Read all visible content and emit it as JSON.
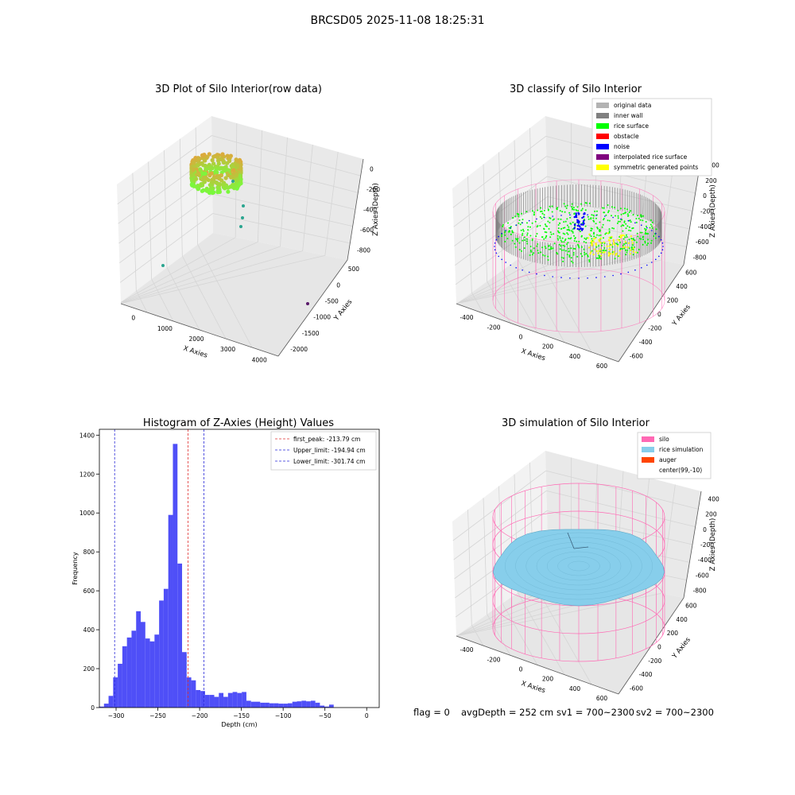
{
  "figure_title": "BRCSD05 2025-11-08 18:25:31",
  "footer": {
    "flag": "flag = 0",
    "avg": "avgDepth = 252 cm",
    "sv1": "sv1 = 700~2300",
    "sv2": "sv2 = 700~2300"
  },
  "colors": {
    "hist_bar": "#4f4ff7",
    "first_peak": "#e03030",
    "limit": "#2a2ad8",
    "silo": "#ff69b4",
    "rice_sim": "#87ceeb",
    "auger": "#ff4500",
    "rice_surface": "#00ff00",
    "inner_wall": "#808080",
    "original_data": "#b3b3b3",
    "noise": "#0000ff",
    "obstacle": "#ff0000",
    "interpolated": "#800080",
    "symmetric": "#ffff00"
  },
  "panels": {
    "raw": {
      "title": "3D Plot of Silo Interior(row data)",
      "xlabel": "X Axies",
      "ylabel": "Y Axies",
      "zlabel": "Z Axies (Depth)",
      "xticks": [
        "0",
        "1000",
        "2000",
        "3000",
        "4000"
      ],
      "yticks": [
        "-2000",
        "-1500",
        "-1000",
        "-500",
        "0",
        "500"
      ],
      "zticks": [
        "-800",
        "-600",
        "-400",
        "-200",
        "0"
      ]
    },
    "classify": {
      "title": "3D classify of Silo Interior",
      "xlabel": "X Axies",
      "ylabel": "Y Axies",
      "zlabel": "Z Axies (Depth)",
      "xticks": [
        "-400",
        "-200",
        "0",
        "200",
        "400",
        "600"
      ],
      "yticks": [
        "-600",
        "-400",
        "-200",
        "0",
        "200",
        "400",
        "600"
      ],
      "zticks": [
        "-800",
        "-600",
        "-400",
        "-200",
        "0",
        "200",
        "400"
      ],
      "legend": [
        {
          "label": "original data",
          "color_key": "original_data"
        },
        {
          "label": "inner wall",
          "color_key": "inner_wall"
        },
        {
          "label": "rice surface",
          "color_key": "rice_surface"
        },
        {
          "label": "obstacle",
          "color_key": "obstacle"
        },
        {
          "label": "noise",
          "color_key": "noise"
        },
        {
          "label": "interpolated rice surface",
          "color_key": "interpolated"
        },
        {
          "label": "symmetric generated points",
          "color_key": "symmetric"
        }
      ]
    },
    "simulation": {
      "title": "3D simulation of Silo Interior",
      "xlabel": "X Axies",
      "ylabel": "Y Axies",
      "zlabel": "Z Axies (Depth)",
      "xticks": [
        "-400",
        "-200",
        "0",
        "200",
        "400",
        "600"
      ],
      "yticks": [
        "-600",
        "-400",
        "-200",
        "0",
        "200",
        "400",
        "600"
      ],
      "zticks": [
        "-800",
        "-600",
        "-400",
        "-200",
        "0",
        "200",
        "400"
      ],
      "legend": [
        {
          "label": "silo",
          "color_key": "silo"
        },
        {
          "label": "rice simulation",
          "color_key": "rice_sim"
        },
        {
          "label": "auger",
          "color_key": "auger"
        },
        {
          "label": "center(99,-10)",
          "color_key": ""
        }
      ]
    }
  },
  "chart_data": [
    {
      "type": "bar",
      "title": "Histogram of Z-Axies (Height) Values",
      "xlabel": "Depth (cm)",
      "ylabel": "Frequency",
      "xlim": [
        -320,
        15
      ],
      "ylim": [
        0,
        1430
      ],
      "xticks": [
        -300,
        -250,
        -200,
        -150,
        -100,
        -50,
        0
      ],
      "yticks": [
        0,
        200,
        400,
        600,
        800,
        1000,
        1200,
        1400
      ],
      "bin_width": 5.5,
      "bins_start": [
        -320,
        -314.5,
        -309,
        -303.5,
        -298,
        -292.5,
        -287,
        -281.5,
        -276,
        -270.5,
        -265,
        -259.5,
        -254,
        -248.5,
        -243,
        -237.5,
        -232,
        -226.5,
        -221,
        -215.5,
        -210,
        -204.5,
        -199,
        -193.5,
        -188,
        -182.5,
        -177,
        -171.5,
        -166,
        -160.5,
        -155,
        -149.5,
        -144,
        -138.5,
        -133,
        -127.5,
        -122,
        -116.5,
        -111,
        -105.5,
        -100,
        -94.5,
        -89,
        -83.5,
        -78,
        -72.5,
        -67,
        -61.5,
        -56,
        -50.5,
        -45,
        -39.5,
        -34,
        -28.5,
        -23,
        -17.5,
        -12,
        -6.5,
        -1
      ],
      "values": [
        5,
        20,
        60,
        155,
        225,
        315,
        360,
        395,
        495,
        440,
        355,
        340,
        375,
        550,
        610,
        990,
        1355,
        740,
        285,
        155,
        140,
        90,
        85,
        65,
        65,
        55,
        75,
        55,
        75,
        80,
        75,
        80,
        35,
        30,
        30,
        25,
        25,
        22,
        22,
        20,
        20,
        22,
        30,
        32,
        35,
        32,
        35,
        25,
        10,
        5,
        15,
        0,
        0,
        0,
        0,
        0,
        0,
        0,
        0
      ],
      "vlines": [
        {
          "label": "first_peak: -213.79 cm",
          "x": -213.79,
          "color_key": "first_peak"
        },
        {
          "label": "Upper_limit: -194.94 cm",
          "x": -194.94,
          "color_key": "limit"
        },
        {
          "label": "Lower_limit: -301.74 cm",
          "x": -301.74,
          "color_key": "limit"
        }
      ],
      "grid": false,
      "legend_position": "top-right"
    }
  ]
}
